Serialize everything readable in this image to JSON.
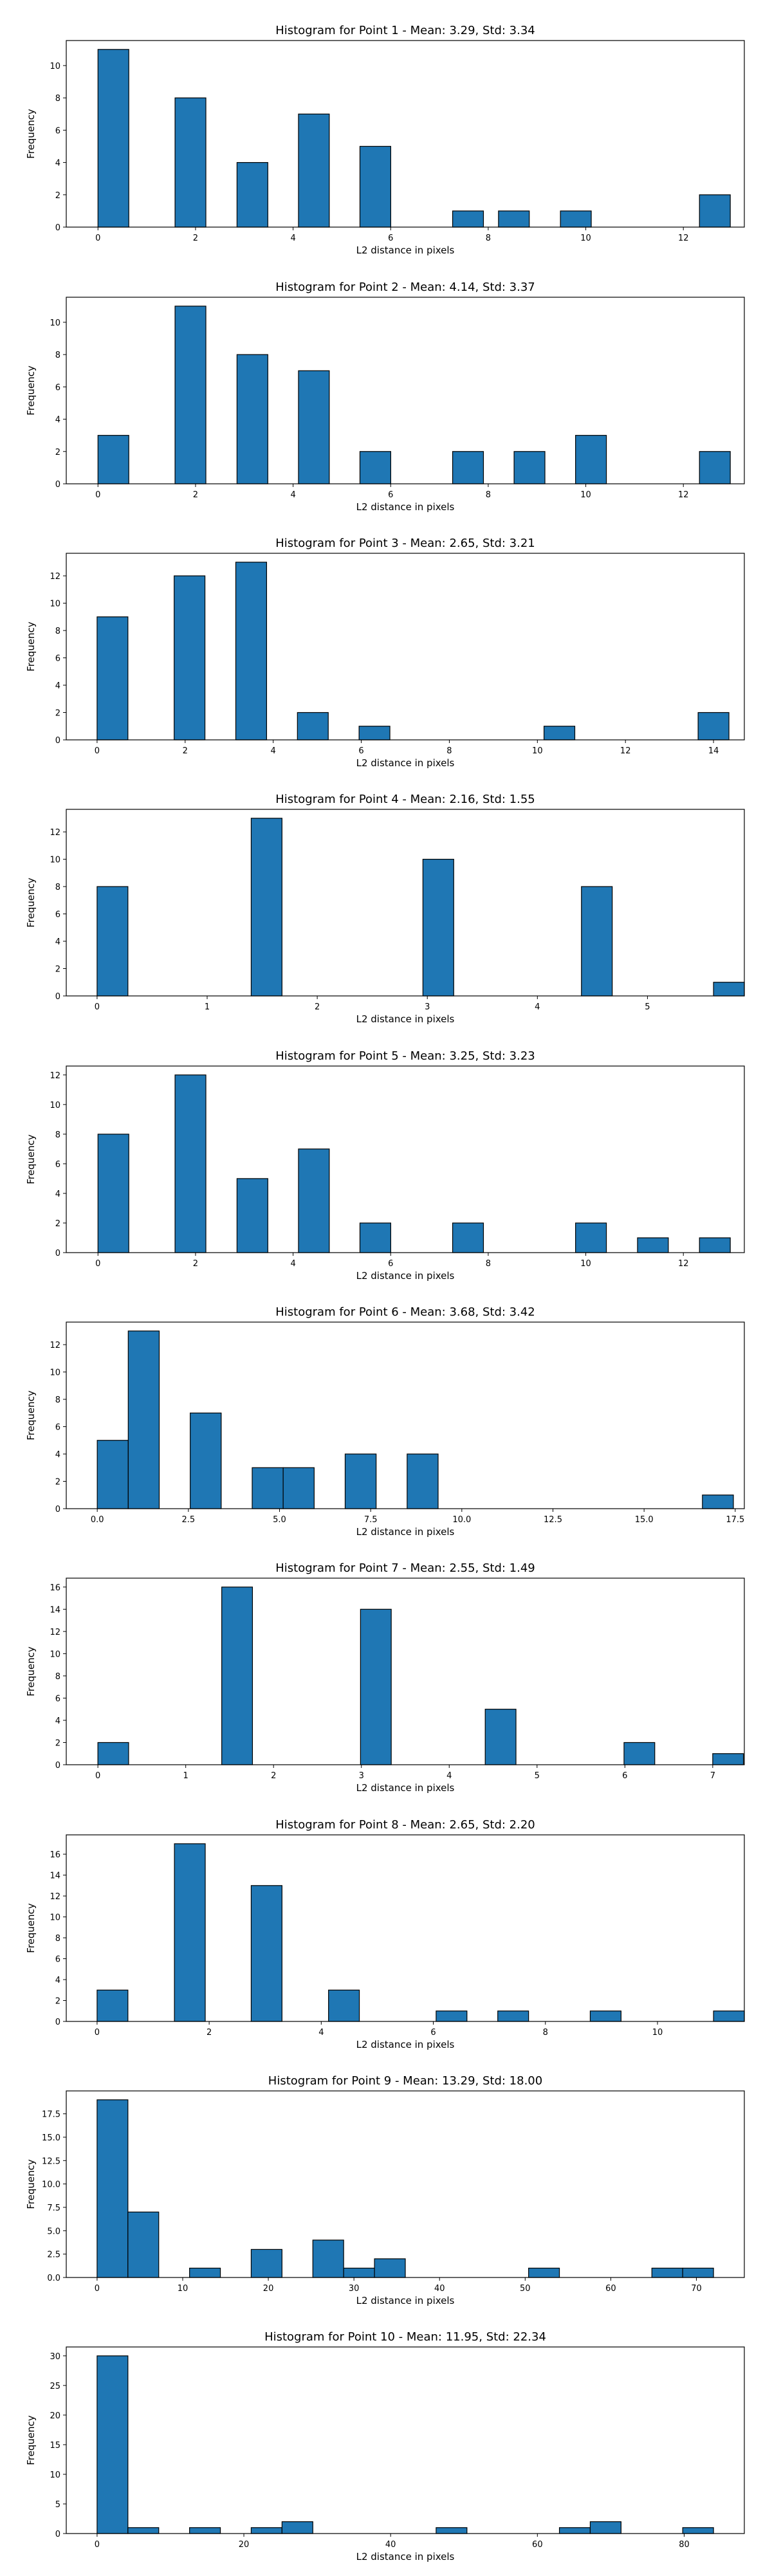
{
  "chart_data": [
    {
      "type": "bar",
      "title": "Histogram for Point 1 - Mean: 3.29, Std: 3.34",
      "xlabel": "L2 distance in pixels",
      "ylabel": "Frequency",
      "xlim": [
        -0.65,
        13.25
      ],
      "ylim": [
        0,
        11.55
      ],
      "xticks": [
        0,
        2,
        4,
        6,
        8,
        10,
        12
      ],
      "xtick_labels": [
        "0",
        "2",
        "4",
        "6",
        "8",
        "10",
        "12"
      ],
      "yticks": [
        0,
        2,
        4,
        6,
        8,
        10
      ],
      "ytick_labels": [
        "0",
        "2",
        "4",
        "6",
        "8",
        "10"
      ],
      "bin_width": 0.632,
      "bins": [
        {
          "x": 0.0,
          "count": 11
        },
        {
          "x": 1.58,
          "count": 8
        },
        {
          "x": 2.85,
          "count": 4
        },
        {
          "x": 4.11,
          "count": 7
        },
        {
          "x": 5.37,
          "count": 5
        },
        {
          "x": 7.27,
          "count": 1
        },
        {
          "x": 8.21,
          "count": 1
        },
        {
          "x": 9.48,
          "count": 1
        },
        {
          "x": 12.33,
          "count": 2
        }
      ]
    },
    {
      "type": "bar",
      "title": "Histogram for Point 2 - Mean: 4.14, Std: 3.37",
      "xlabel": "L2 distance in pixels",
      "ylabel": "Frequency",
      "xlim": [
        -0.65,
        13.25
      ],
      "ylim": [
        0,
        11.55
      ],
      "xticks": [
        0,
        2,
        4,
        6,
        8,
        10,
        12
      ],
      "xtick_labels": [
        "0",
        "2",
        "4",
        "6",
        "8",
        "10",
        "12"
      ],
      "yticks": [
        0,
        2,
        4,
        6,
        8,
        10
      ],
      "ytick_labels": [
        "0",
        "2",
        "4",
        "6",
        "8",
        "10"
      ],
      "bin_width": 0.632,
      "bins": [
        {
          "x": 0.0,
          "count": 3
        },
        {
          "x": 1.58,
          "count": 11
        },
        {
          "x": 2.85,
          "count": 8
        },
        {
          "x": 4.11,
          "count": 7
        },
        {
          "x": 5.37,
          "count": 2
        },
        {
          "x": 7.27,
          "count": 2
        },
        {
          "x": 8.53,
          "count": 2
        },
        {
          "x": 9.79,
          "count": 3
        },
        {
          "x": 12.33,
          "count": 2
        }
      ]
    },
    {
      "type": "bar",
      "title": "Histogram for Point 3 - Mean: 2.65, Std: 3.21",
      "xlabel": "L2 distance in pixels",
      "ylabel": "Frequency",
      "xlim": [
        -0.7,
        14.7
      ],
      "ylim": [
        0,
        13.65
      ],
      "xticks": [
        0,
        2,
        4,
        6,
        8,
        10,
        12,
        14
      ],
      "xtick_labels": [
        "0",
        "2",
        "4",
        "6",
        "8",
        "10",
        "12",
        "14"
      ],
      "yticks": [
        0,
        2,
        4,
        6,
        8,
        10,
        12
      ],
      "ytick_labels": [
        "0",
        "2",
        "4",
        "6",
        "8",
        "10",
        "12"
      ],
      "bin_width": 0.7,
      "bins": [
        {
          "x": 0.0,
          "count": 9
        },
        {
          "x": 1.75,
          "count": 12
        },
        {
          "x": 3.15,
          "count": 13
        },
        {
          "x": 4.55,
          "count": 2
        },
        {
          "x": 5.95,
          "count": 1
        },
        {
          "x": 10.15,
          "count": 1
        },
        {
          "x": 13.65,
          "count": 2
        }
      ]
    },
    {
      "type": "bar",
      "title": "Histogram for Point 4 - Mean: 2.16, Std: 1.55",
      "xlabel": "L2 distance in pixels",
      "ylabel": "Frequency",
      "xlim": [
        -0.28,
        5.88
      ],
      "ylim": [
        0,
        13.65
      ],
      "xticks": [
        0,
        1,
        2,
        3,
        4,
        5
      ],
      "xtick_labels": [
        "0",
        "1",
        "2",
        "3",
        "4",
        "5"
      ],
      "yticks": [
        0,
        2,
        4,
        6,
        8,
        10,
        12
      ],
      "ytick_labels": [
        "0",
        "2",
        "4",
        "6",
        "8",
        "10",
        "12"
      ],
      "bin_width": 0.28,
      "bins": [
        {
          "x": 0.0,
          "count": 8
        },
        {
          "x": 1.4,
          "count": 13
        },
        {
          "x": 2.96,
          "count": 10
        },
        {
          "x": 4.4,
          "count": 8
        },
        {
          "x": 5.6,
          "count": 1
        }
      ]
    },
    {
      "type": "bar",
      "title": "Histogram for Point 5 - Mean: 3.25, Std: 3.23",
      "xlabel": "L2 distance in pixels",
      "ylabel": "Frequency",
      "xlim": [
        -0.65,
        13.25
      ],
      "ylim": [
        0,
        12.6
      ],
      "xticks": [
        0,
        2,
        4,
        6,
        8,
        10,
        12
      ],
      "xtick_labels": [
        "0",
        "2",
        "4",
        "6",
        "8",
        "10",
        "12"
      ],
      "yticks": [
        0,
        2,
        4,
        6,
        8,
        10,
        12
      ],
      "ytick_labels": [
        "0",
        "2",
        "4",
        "6",
        "8",
        "10",
        "12"
      ],
      "bin_width": 0.632,
      "bins": [
        {
          "x": 0.0,
          "count": 8
        },
        {
          "x": 1.58,
          "count": 12
        },
        {
          "x": 2.85,
          "count": 5
        },
        {
          "x": 4.11,
          "count": 7
        },
        {
          "x": 5.37,
          "count": 2
        },
        {
          "x": 7.27,
          "count": 2
        },
        {
          "x": 9.79,
          "count": 2
        },
        {
          "x": 11.06,
          "count": 1
        },
        {
          "x": 12.33,
          "count": 1
        }
      ]
    },
    {
      "type": "bar",
      "title": "Histogram for Point 6 - Mean: 3.68, Std: 3.42",
      "xlabel": "L2 distance in pixels",
      "ylabel": "Frequency",
      "xlim": [
        -0.85,
        17.75
      ],
      "ylim": [
        0,
        13.65
      ],
      "xticks": [
        0,
        2.5,
        5,
        7.5,
        10,
        12.5,
        15,
        17.5
      ],
      "xtick_labels": [
        "0.0",
        "2.5",
        "5.0",
        "7.5",
        "10.0",
        "12.5",
        "15.0",
        "17.5"
      ],
      "yticks": [
        0,
        2,
        4,
        6,
        8,
        10,
        12
      ],
      "ytick_labels": [
        "0",
        "2",
        "4",
        "6",
        "8",
        "10",
        "12"
      ],
      "bin_width": 0.85,
      "bins": [
        {
          "x": 0.0,
          "count": 5
        },
        {
          "x": 0.85,
          "count": 13
        },
        {
          "x": 2.55,
          "count": 7
        },
        {
          "x": 4.25,
          "count": 3
        },
        {
          "x": 5.1,
          "count": 3
        },
        {
          "x": 6.8,
          "count": 4
        },
        {
          "x": 8.5,
          "count": 4
        },
        {
          "x": 16.6,
          "count": 1
        }
      ]
    },
    {
      "type": "bar",
      "title": "Histogram for Point 7 - Mean: 2.55, Std: 1.49",
      "xlabel": "L2 distance in pixels",
      "ylabel": "Frequency",
      "xlim": [
        -0.36,
        7.36
      ],
      "ylim": [
        0,
        16.8
      ],
      "xticks": [
        0,
        1,
        2,
        3,
        4,
        5,
        6,
        7
      ],
      "xtick_labels": [
        "0",
        "1",
        "2",
        "3",
        "4",
        "5",
        "6",
        "7"
      ],
      "yticks": [
        0,
        2,
        4,
        6,
        8,
        10,
        12,
        14,
        16
      ],
      "ytick_labels": [
        "0",
        "2",
        "4",
        "6",
        "8",
        "10",
        "12",
        "14",
        "16"
      ],
      "bin_width": 0.35,
      "bins": [
        {
          "x": 0.0,
          "count": 2
        },
        {
          "x": 1.41,
          "count": 16
        },
        {
          "x": 2.99,
          "count": 14
        },
        {
          "x": 4.41,
          "count": 5
        },
        {
          "x": 5.99,
          "count": 2
        },
        {
          "x": 7.0,
          "count": 1
        }
      ]
    },
    {
      "type": "bar",
      "title": "Histogram for Point 8 - Mean: 2.65, Std: 2.20",
      "xlabel": "L2 distance in pixels",
      "ylabel": "Frequency",
      "xlim": [
        -0.55,
        11.55
      ],
      "ylim": [
        0,
        17.85
      ],
      "xticks": [
        0,
        2,
        4,
        6,
        8,
        10
      ],
      "xtick_labels": [
        "0",
        "2",
        "4",
        "6",
        "8",
        "10"
      ],
      "yticks": [
        0,
        2,
        4,
        6,
        8,
        10,
        12,
        14,
        16
      ],
      "ytick_labels": [
        "0",
        "2",
        "4",
        "6",
        "8",
        "10",
        "12",
        "14",
        "16"
      ],
      "bin_width": 0.55,
      "bins": [
        {
          "x": 0.0,
          "count": 3
        },
        {
          "x": 1.38,
          "count": 17
        },
        {
          "x": 2.75,
          "count": 13
        },
        {
          "x": 4.13,
          "count": 3
        },
        {
          "x": 6.05,
          "count": 1
        },
        {
          "x": 7.15,
          "count": 1
        },
        {
          "x": 8.8,
          "count": 1
        },
        {
          "x": 11.0,
          "count": 1
        }
      ]
    },
    {
      "type": "bar",
      "title": "Histogram for Point 9 - Mean: 13.29, Std: 18.00",
      "xlabel": "L2 distance in pixels",
      "ylabel": "Frequency",
      "xlim": [
        -3.6,
        75.6
      ],
      "ylim": [
        0,
        19.95
      ],
      "xticks": [
        0,
        10,
        20,
        30,
        40,
        50,
        60,
        70
      ],
      "xtick_labels": [
        "0",
        "10",
        "20",
        "30",
        "40",
        "50",
        "60",
        "70"
      ],
      "yticks": [
        0,
        2.5,
        5,
        7.5,
        10,
        12.5,
        15,
        17.5
      ],
      "ytick_labels": [
        "0.0",
        "2.5",
        "5.0",
        "7.5",
        "10.0",
        "12.5",
        "15.0",
        "17.5"
      ],
      "bin_width": 3.6,
      "bins": [
        {
          "x": 0.0,
          "count": 19
        },
        {
          "x": 3.6,
          "count": 7
        },
        {
          "x": 10.8,
          "count": 1
        },
        {
          "x": 18.0,
          "count": 3
        },
        {
          "x": 25.2,
          "count": 4
        },
        {
          "x": 28.8,
          "count": 1
        },
        {
          "x": 32.4,
          "count": 2
        },
        {
          "x": 50.4,
          "count": 1
        },
        {
          "x": 64.8,
          "count": 1
        },
        {
          "x": 68.4,
          "count": 1
        }
      ]
    },
    {
      "type": "bar",
      "title": "Histogram for Point 10 - Mean: 11.95, Std: 22.34",
      "xlabel": "L2 distance in pixels",
      "ylabel": "Frequency",
      "xlim": [
        -4.2,
        88.2
      ],
      "ylim": [
        0,
        31.5
      ],
      "xticks": [
        0,
        20,
        40,
        60,
        80
      ],
      "xtick_labels": [
        "0",
        "20",
        "40",
        "60",
        "80"
      ],
      "yticks": [
        0,
        5,
        10,
        15,
        20,
        25,
        30
      ],
      "ytick_labels": [
        "0",
        "5",
        "10",
        "15",
        "20",
        "25",
        "30"
      ],
      "bin_width": 4.2,
      "bins": [
        {
          "x": 0.0,
          "count": 30
        },
        {
          "x": 4.2,
          "count": 1
        },
        {
          "x": 12.6,
          "count": 1
        },
        {
          "x": 21.0,
          "count": 1
        },
        {
          "x": 25.2,
          "count": 2
        },
        {
          "x": 46.2,
          "count": 1
        },
        {
          "x": 63.0,
          "count": 1
        },
        {
          "x": 67.2,
          "count": 2
        },
        {
          "x": 79.8,
          "count": 1
        }
      ]
    }
  ]
}
